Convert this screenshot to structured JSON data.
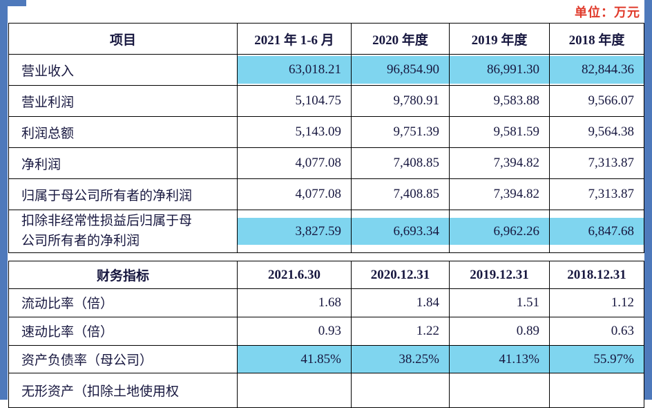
{
  "unit_label": "单位：万元",
  "colors": {
    "highlight": "#7fd5ef",
    "accent_red": "#e03a2b",
    "edge_blue": "#4e79bb",
    "text": "#17173f"
  },
  "income_table": {
    "headers": [
      "项目",
      "2021 年 1-6 月",
      "2020 年度",
      "2019 年度",
      "2018 年度"
    ],
    "rows": [
      {
        "label": "营业收入",
        "values": [
          "63,018.21",
          "96,854.90",
          "86,991.30",
          "82,844.36"
        ],
        "highlight": true
      },
      {
        "label": "营业利润",
        "values": [
          "5,104.75",
          "9,780.91",
          "9,583.88",
          "9,566.07"
        ],
        "highlight": false
      },
      {
        "label": "利润总额",
        "values": [
          "5,143.09",
          "9,751.39",
          "9,581.59",
          "9,564.38"
        ],
        "highlight": false
      },
      {
        "label": "净利润",
        "values": [
          "4,077.08",
          "7,408.85",
          "7,394.82",
          "7,313.87"
        ],
        "highlight": false
      },
      {
        "label": "归属于母公司所有者的净利润",
        "values": [
          "4,077.08",
          "7,408.85",
          "7,394.82",
          "7,313.87"
        ],
        "highlight": false
      },
      {
        "label": "扣除非经常性损益后归属于母公司所有者的净利润",
        "values": [
          "3,827.59",
          "6,693.34",
          "6,962.26",
          "6,847.68"
        ],
        "highlight": true
      }
    ]
  },
  "ratio_table": {
    "headers": [
      "财务指标",
      "2021.6.30",
      "2020.12.31",
      "2019.12.31",
      "2018.12.31"
    ],
    "rows": [
      {
        "label": "流动比率（倍）",
        "values": [
          "1.68",
          "1.84",
          "1.51",
          "1.12"
        ],
        "highlight": false
      },
      {
        "label": "速动比率（倍）",
        "values": [
          "0.93",
          "1.22",
          "0.89",
          "0.63"
        ],
        "highlight": false
      },
      {
        "label": "资产负债率（母公司）",
        "values": [
          "41.85%",
          "38.25%",
          "41.13%",
          "55.97%"
        ],
        "highlight": true
      },
      {
        "label": "无形资产（扣除土地使用权",
        "values": [
          "",
          "",
          "",
          ""
        ],
        "highlight": false
      }
    ]
  }
}
